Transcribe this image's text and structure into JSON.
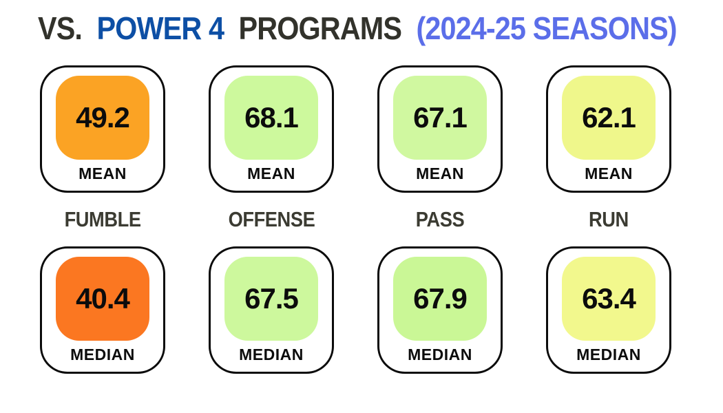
{
  "title": {
    "part1": "VS.",
    "part2": "POWER 4",
    "part3": "PROGRAMS",
    "part4": "(2024-25 SEASONS)",
    "dark_color": "#32322b",
    "blue_color": "#0d4fa5",
    "light_blue_color": "#5b6ee9"
  },
  "chart_data": {
    "type": "table",
    "title": "VS. POWER 4 PROGRAMS (2024-25 SEASONS)",
    "categories": [
      "FUMBLE",
      "OFFENSE",
      "PASS",
      "RUN"
    ],
    "series": [
      {
        "name": "MEAN",
        "values": [
          49.2,
          68.1,
          67.1,
          62.1
        ]
      },
      {
        "name": "MEDIAN",
        "values": [
          40.4,
          67.5,
          67.9,
          63.4
        ]
      }
    ],
    "cell_colors": [
      [
        "#fba324",
        "#cdf99d",
        "#d0f8a0",
        "#eff78b"
      ],
      [
        "#fb7721",
        "#cdf89d",
        "#caf796",
        "#f2f88d"
      ]
    ],
    "layout": "grid of rounded stat cards, mean row above category labels, median row below"
  },
  "mean_cards": [
    {
      "value": "49.2",
      "label": "MEAN",
      "color": "#fba324"
    },
    {
      "value": "68.1",
      "label": "MEAN",
      "color": "#cdf99d"
    },
    {
      "value": "67.1",
      "label": "MEAN",
      "color": "#d0f8a0"
    },
    {
      "value": "62.1",
      "label": "MEAN",
      "color": "#eff78b"
    }
  ],
  "category_labels": [
    {
      "text": "FUMBLE"
    },
    {
      "text": "OFFENSE"
    },
    {
      "text": "PASS"
    },
    {
      "text": "RUN"
    }
  ],
  "median_cards": [
    {
      "value": "40.4",
      "label": "MEDIAN",
      "color": "#fb7721"
    },
    {
      "value": "67.5",
      "label": "MEDIAN",
      "color": "#cdf89d"
    },
    {
      "value": "67.9",
      "label": "MEDIAN",
      "color": "#caf796"
    },
    {
      "value": "63.4",
      "label": "MEDIAN",
      "color": "#f2f88d"
    }
  ]
}
